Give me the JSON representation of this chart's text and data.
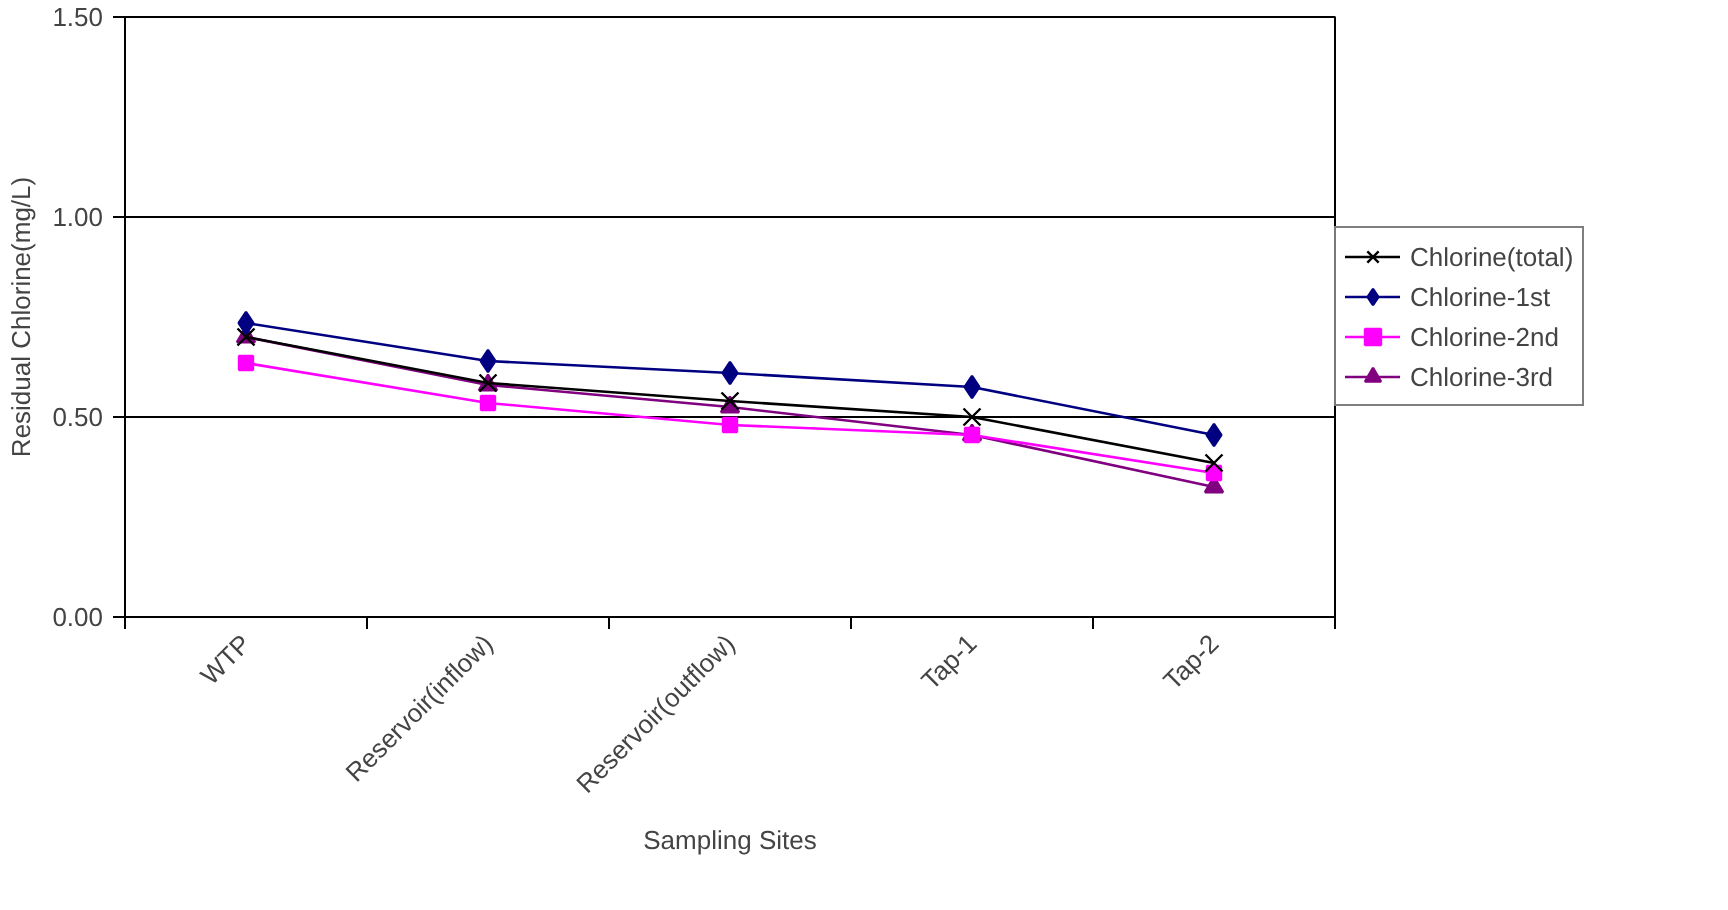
{
  "chart_data": {
    "type": "line",
    "xlabel": "Sampling Sites",
    "ylabel": "Residual Chlorine(mg/L)",
    "categories": [
      "WTP",
      "Reservoir(inflow)",
      "Reservoir(outflow)",
      "Tap-1",
      "Tap-2"
    ],
    "series": [
      {
        "name": "Chlorine(total)",
        "color": "#000000",
        "marker": "cross",
        "values": [
          0.7,
          0.585,
          0.54,
          0.5,
          0.385
        ]
      },
      {
        "name": "Chlorine-1st",
        "color": "#000080",
        "marker": "diamond",
        "values": [
          0.735,
          0.64,
          0.61,
          0.575,
          0.455
        ]
      },
      {
        "name": "Chlorine-2nd",
        "color": "#ff00ff",
        "marker": "square",
        "values": [
          0.635,
          0.535,
          0.48,
          0.455,
          0.36
        ]
      },
      {
        "name": "Chlorine-3rd",
        "color": "#800080",
        "marker": "triangle",
        "values": [
          0.7,
          0.58,
          0.525,
          0.455,
          0.325
        ]
      }
    ],
    "ylim": [
      0,
      1.5
    ],
    "yticks": [
      {
        "value": 0,
        "label": "0.00"
      },
      {
        "value": 0.5,
        "label": "0.50"
      },
      {
        "value": 1.0,
        "label": "1.00"
      },
      {
        "value": 1.5,
        "label": "1.50"
      }
    ],
    "grid": "y",
    "legend": "right",
    "line_style": "solid"
  }
}
